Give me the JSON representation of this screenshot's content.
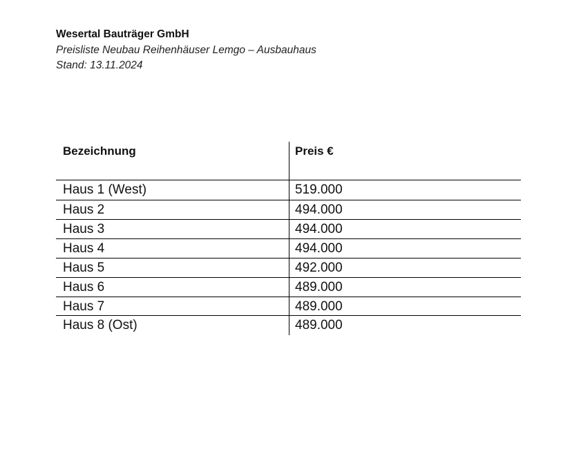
{
  "header": {
    "company": "Wesertal Bauträger GmbH",
    "subtitle": "Preisliste Neubau Reihenhäuser Lemgo – Ausbauhaus",
    "stand": "Stand: 13.11.2024"
  },
  "table": {
    "columns": [
      "Bezeichnung",
      "Preis €"
    ],
    "rows": [
      {
        "name": "Haus 1 (West)",
        "price": "519.000"
      },
      {
        "name": "Haus 2",
        "price": "494.000"
      },
      {
        "name": "Haus 3",
        "price": "494.000"
      },
      {
        "name": "Haus 4",
        "price": "494.000"
      },
      {
        "name": "Haus 5",
        "price": "492.000"
      },
      {
        "name": "Haus 6",
        "price": "489.000"
      },
      {
        "name": "Haus 7",
        "price": "489.000"
      },
      {
        "name": "Haus 8 (Ost)",
        "price": "489.000"
      }
    ]
  }
}
